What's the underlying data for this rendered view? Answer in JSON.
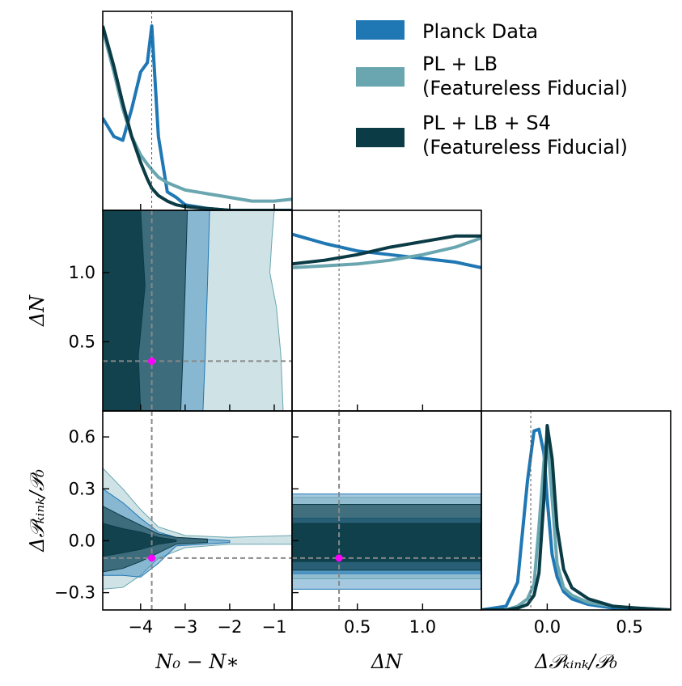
{
  "chart_data": {
    "type": "corner",
    "legend": {
      "placement": "top-right",
      "entries": [
        {
          "name": "Planck Data",
          "color": "#1f77b4"
        },
        {
          "name": "PL + LB",
          "name_line2": "(Featureless Fiducial)",
          "color": "#69a6b0"
        },
        {
          "name": "PL + LB + S4",
          "name_line2": "(Featureless Fiducial)",
          "color": "#0b3b45"
        }
      ]
    },
    "marker": {
      "color": "#ff00ff",
      "params": {
        "N0_minus_Nstar": -3.75,
        "DeltaN": 0.36,
        "DeltaP": -0.1
      }
    },
    "parameters": [
      {
        "key": "n0",
        "label": "N₀ − N∗",
        "range": [
          -4.85,
          -0.6
        ],
        "ticks": [
          -4,
          -3,
          -2,
          -1
        ],
        "tick_labels": [
          "−4",
          "−3",
          "−2",
          "−1"
        ]
      },
      {
        "key": "dn",
        "label": "ΔN",
        "range": [
          0.0,
          1.45
        ],
        "ticks": [
          0.5,
          1.0
        ],
        "tick_labels": [
          "0.5",
          "1.0"
        ]
      },
      {
        "key": "dp",
        "label": "Δ𝒫ₖᵢₙₖ/𝒫₀",
        "range": [
          -0.4,
          0.75
        ],
        "ticks": [
          -0.3,
          0.0,
          0.3,
          0.6
        ],
        "tick_labels": [
          "−0.3",
          "0.0",
          "0.3",
          "0.6"
        ],
        "x_ticks": [
          0.0,
          0.5
        ],
        "x_tick_labels": [
          "0.0",
          "0.5"
        ],
        "x_range": [
          -0.4,
          0.75
        ]
      }
    ],
    "marginals": {
      "n0": {
        "x": [
          -4.85,
          -4.6,
          -4.4,
          -4.2,
          -4.0,
          -3.85,
          -3.75,
          -3.6,
          -3.4,
          -3.2,
          -3.0,
          -2.5,
          -2.0,
          -1.5,
          -1.0,
          -0.6
        ],
        "series": [
          {
            "name": "Planck Data",
            "values": [
              0.5,
              0.4,
              0.38,
              0.55,
              0.75,
              0.8,
              1.0,
              0.4,
              0.1,
              0.07,
              0.03,
              0.01,
              0.0,
              0.0,
              0.0,
              0.0
            ]
          },
          {
            "name": "PL + LB",
            "values": [
              0.98,
              0.75,
              0.55,
              0.4,
              0.3,
              0.25,
              0.22,
              0.18,
              0.15,
              0.13,
              0.11,
              0.09,
              0.07,
              0.05,
              0.05,
              0.06
            ]
          },
          {
            "name": "PL + LB + S4",
            "values": [
              1.0,
              0.78,
              0.58,
              0.4,
              0.26,
              0.17,
              0.12,
              0.08,
              0.05,
              0.03,
              0.02,
              0.01,
              0.0,
              0.0,
              0.0,
              0.0
            ]
          }
        ]
      },
      "dn": {
        "x": [
          0.0,
          0.25,
          0.5,
          0.75,
          1.0,
          1.25,
          1.45
        ],
        "series": [
          {
            "name": "Planck Data",
            "values": [
              0.95,
              0.9,
              0.86,
              0.84,
              0.82,
              0.8,
              0.77
            ]
          },
          {
            "name": "PL + LB",
            "values": [
              0.77,
              0.78,
              0.79,
              0.81,
              0.84,
              0.88,
              0.93
            ]
          },
          {
            "name": "PL + LB + S4",
            "values": [
              0.79,
              0.81,
              0.84,
              0.88,
              0.91,
              0.94,
              0.94
            ]
          }
        ]
      },
      "dp": {
        "x": [
          -0.4,
          -0.25,
          -0.18,
          -0.12,
          -0.08,
          -0.05,
          -0.02,
          0.0,
          0.03,
          0.06,
          0.1,
          0.15,
          0.25,
          0.4,
          0.55,
          0.75
        ],
        "series": [
          {
            "name": "Planck Data",
            "values": [
              0.0,
              0.02,
              0.15,
              0.7,
              0.97,
              0.98,
              0.85,
              0.6,
              0.3,
              0.18,
              0.1,
              0.06,
              0.03,
              0.01,
              0.0,
              0.0
            ]
          },
          {
            "name": "PL + LB",
            "values": [
              0.0,
              0.0,
              0.02,
              0.06,
              0.14,
              0.45,
              0.8,
              0.95,
              0.6,
              0.25,
              0.12,
              0.08,
              0.04,
              0.02,
              0.01,
              0.0
            ]
          },
          {
            "name": "PL + LB + S4",
            "values": [
              0.0,
              0.0,
              0.01,
              0.03,
              0.08,
              0.2,
              0.6,
              1.0,
              0.82,
              0.45,
              0.22,
              0.12,
              0.06,
              0.02,
              0.01,
              0.0
            ]
          }
        ]
      }
    },
    "contours": [
      {
        "x": "n0",
        "y": "dn",
        "regions": [
          {
            "series": "PL + LB",
            "level": "95%",
            "outline_x": [
              -4.85,
              -0.8,
              -0.85,
              -0.95,
              -1.1,
              -1.05,
              -1.0,
              -4.85
            ],
            "outline_y": [
              0.0,
              0.0,
              0.4,
              0.75,
              1.0,
              1.25,
              1.45,
              1.45
            ]
          },
          {
            "series": "Planck Data",
            "level": "95%",
            "outline_x": [
              -4.85,
              -2.6,
              -2.55,
              -2.5,
              -2.45,
              -4.85
            ],
            "outline_y": [
              0.0,
              0.0,
              0.4,
              0.9,
              1.45,
              1.45
            ]
          },
          {
            "series": "PL + LB + S4",
            "level": "95%",
            "outline_x": [
              -4.85,
              -3.1,
              -3.05,
              -3.0,
              -2.95,
              -4.85
            ],
            "outline_y": [
              0.0,
              0.0,
              0.4,
              0.9,
              1.45,
              1.45
            ]
          },
          {
            "series": "PL + LB + S4",
            "level": "68%",
            "outline_x": [
              -4.85,
              -4.0,
              -4.05,
              -3.9,
              -4.0,
              -4.85
            ],
            "outline_y": [
              0.0,
              0.0,
              0.4,
              0.9,
              1.45,
              1.45
            ]
          }
        ]
      },
      {
        "x": "n0",
        "y": "dp",
        "regions": [
          {
            "series": "PL + LB",
            "level": "95%",
            "outline_x": [
              -4.85,
              -4.4,
              -4.0,
              -3.6,
              -3.0,
              -2.0,
              -0.6,
              -0.6,
              -2.0,
              -3.0,
              -3.6,
              -4.0,
              -4.4,
              -4.85
            ],
            "outline_y": [
              0.42,
              0.3,
              0.18,
              0.08,
              0.03,
              0.02,
              0.03,
              -0.02,
              -0.02,
              -0.04,
              -0.1,
              -0.2,
              -0.27,
              -0.28
            ]
          },
          {
            "series": "Planck Data",
            "level": "95%",
            "outline_x": [
              -4.85,
              -4.4,
              -4.0,
              -3.6,
              -3.2,
              -2.0,
              -2.0,
              -3.2,
              -3.6,
              -4.0,
              -4.4,
              -4.85
            ],
            "outline_y": [
              0.3,
              0.22,
              0.13,
              0.05,
              0.02,
              0.0,
              -0.01,
              -0.03,
              -0.13,
              -0.21,
              -0.2,
              -0.2
            ]
          },
          {
            "series": "PL + LB + S4",
            "level": "95%",
            "outline_x": [
              -4.85,
              -4.4,
              -4.0,
              -3.6,
              -3.2,
              -2.5,
              -2.5,
              -3.2,
              -3.6,
              -4.0,
              -4.4,
              -4.85
            ],
            "outline_y": [
              0.2,
              0.14,
              0.09,
              0.04,
              0.02,
              0.01,
              -0.01,
              -0.02,
              -0.07,
              -0.12,
              -0.16,
              -0.18
            ]
          },
          {
            "series": "PL + LB + S4",
            "level": "68%",
            "outline_x": [
              -4.85,
              -4.4,
              -4.0,
              -3.6,
              -3.2,
              -3.2,
              -3.6,
              -4.0,
              -4.4,
              -4.85
            ],
            "outline_y": [
              0.1,
              0.07,
              0.05,
              0.02,
              0.005,
              -0.005,
              -0.02,
              -0.05,
              -0.07,
              -0.09
            ]
          }
        ]
      },
      {
        "x": "dn",
        "y": "dp",
        "regions": [
          {
            "series": "Planck Data",
            "level": "95%",
            "y_band": [
              -0.28,
              0.27
            ]
          },
          {
            "series": "PL + LB",
            "level": "95%",
            "y_band": [
              -0.22,
              0.25
            ]
          },
          {
            "series": "Planck Data",
            "level": "68%",
            "y_band": [
              -0.19,
              0.13
            ]
          },
          {
            "series": "PL + LB + S4",
            "level": "95%",
            "y_band": [
              -0.17,
              0.21
            ]
          },
          {
            "series": "PL + LB + S4",
            "level": "68%",
            "y_band": [
              -0.12,
              0.1
            ]
          }
        ]
      }
    ]
  }
}
